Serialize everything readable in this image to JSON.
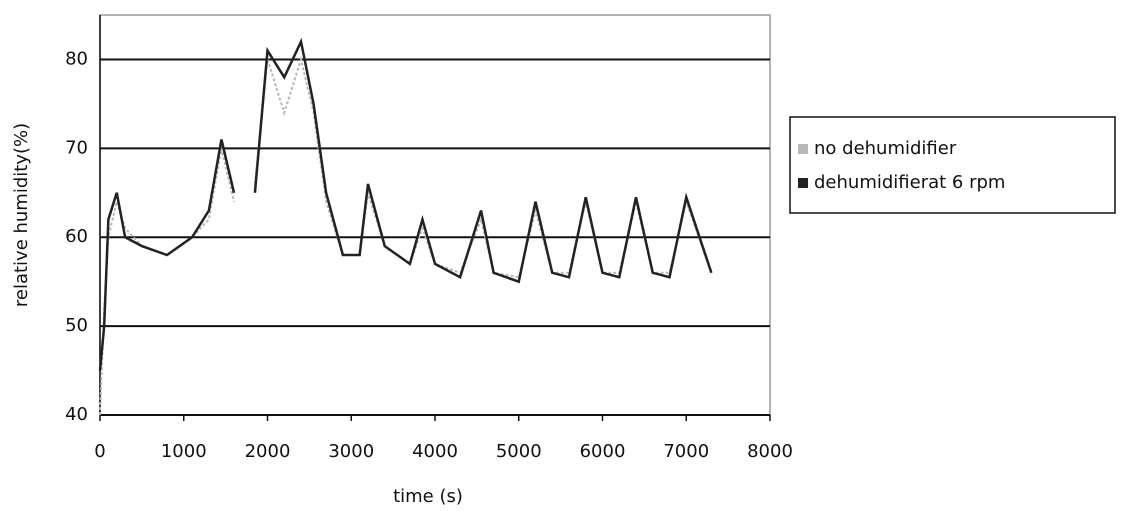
{
  "chart_data": {
    "type": "line",
    "xlabel": "time (s)",
    "ylabel": "relative humidity(%)",
    "x": [
      0,
      50,
      100,
      200,
      300,
      500,
      800,
      1100,
      1300,
      1450,
      1600,
      1700,
      1850,
      2000,
      2200,
      2400,
      2550,
      2700,
      2900,
      3100,
      3200,
      3400,
      3700,
      3850,
      4000,
      4300,
      4550,
      4700,
      5000,
      5200,
      5400,
      5600,
      5800,
      6000,
      6200,
      6400,
      6600,
      6800,
      7000,
      7300
    ],
    "series": [
      {
        "name": "no dehumidifier",
        "color": "#b8b8b8",
        "values": [
          40,
          52,
          60,
          64,
          61,
          59,
          58,
          60,
          62,
          70,
          64,
          null,
          66,
          80,
          74,
          80,
          74,
          64,
          58,
          58,
          65,
          59,
          57,
          61,
          57,
          56,
          62,
          56,
          55.5,
          63,
          56,
          56,
          64,
          56,
          56,
          64,
          56,
          56,
          64,
          56
        ]
      },
      {
        "name": "dehumidifierat 6 rpm",
        "color": "#222222",
        "values": [
          45,
          50,
          62,
          65,
          60,
          59,
          58,
          60,
          63,
          71,
          65,
          null,
          65,
          81,
          78,
          82,
          75,
          65,
          58,
          58,
          66,
          59,
          57,
          62,
          57,
          55.5,
          63,
          56,
          55,
          64,
          56,
          55.5,
          64.5,
          56,
          55.5,
          64.5,
          56,
          55.5,
          64.5,
          56
        ]
      }
    ],
    "xlim": [
      0,
      8000
    ],
    "xticks": [
      0,
      1000,
      2000,
      3000,
      4000,
      5000,
      6000,
      7000,
      8000
    ],
    "ylim": [
      40,
      85
    ],
    "yticks": [
      40,
      50,
      60,
      70,
      80
    ],
    "grid": true,
    "legend": "right"
  }
}
